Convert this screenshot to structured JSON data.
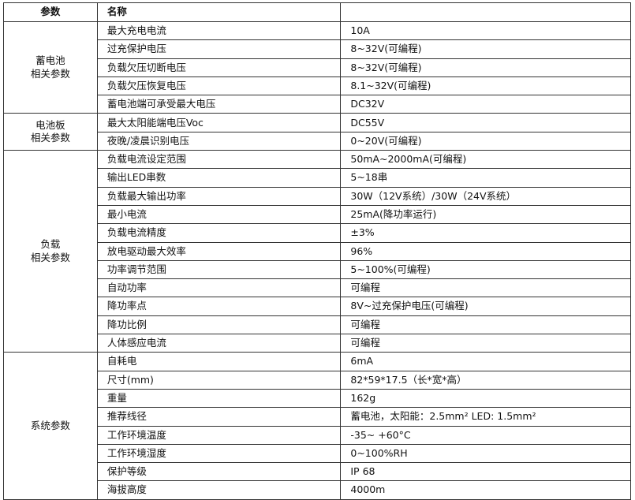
{
  "table": {
    "header": [
      "参数",
      "名称"
    ],
    "groups": [
      {
        "label": "蓄电池\n相关参数",
        "rows": [
          [
            "最大充电电流",
            "10A"
          ],
          [
            "过充保护电压",
            "8~32V(可编程)"
          ],
          [
            "负载欠压切断电压",
            "8~32V(可编程)"
          ],
          [
            "负载欠压恢复电压",
            "8.1~32V(可编程)"
          ],
          [
            "蓄电池端可承受最大电压",
            "DC32V"
          ]
        ]
      },
      {
        "label": "电池板\n相关参数",
        "rows": [
          [
            "最大太阳能端电压Voc",
            "DC55V"
          ],
          [
            "夜晚/凌晨识别电压",
            "0~20V(可编程)"
          ]
        ]
      },
      {
        "label": "负载\n相关参数",
        "rows": [
          [
            "负载电流设定范围",
            "50mA~2000mA(可编程)"
          ],
          [
            "输出LED串数",
            "5~18串"
          ],
          [
            "负载最大输出功率",
            "30W（12V系统）/30W（24V系统）"
          ],
          [
            "最小电流",
            "25mA(降功率运行)"
          ],
          [
            "负载电流精度",
            "±3%"
          ],
          [
            "放电驱动最大效率",
            "96%"
          ],
          [
            "功率调节范围",
            "5~100%(可编程)"
          ],
          [
            "自动功率",
            "可编程"
          ],
          [
            "降功率点",
            "8V~过充保护电压(可编程)"
          ],
          [
            "降功比例",
            "可编程"
          ],
          [
            "人体感应电流",
            "可编程"
          ]
        ]
      },
      {
        "label": "系统参数",
        "rows": [
          [
            "自耗电",
            "6mA"
          ],
          [
            "尺寸(mm)",
            "82*59*17.5（长*宽*高）"
          ],
          [
            "重量",
            "162g"
          ],
          [
            "推荐线径",
            "蓄电池，太阳能：2.5mm²    LED: 1.5mm²"
          ],
          [
            "工作环境温度",
            "-35~ +60°C"
          ],
          [
            "工作环境湿度",
            "0~100%RH"
          ],
          [
            "保护等级",
            "IP 68"
          ],
          [
            "海拔高度",
            "4000m"
          ]
        ]
      }
    ]
  }
}
